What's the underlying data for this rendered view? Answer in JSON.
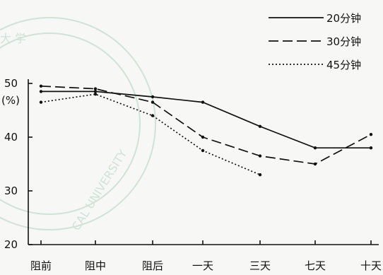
{
  "chart_data": {
    "type": "line",
    "title": "",
    "xlabel": "",
    "ylabel": "(%)",
    "categories": [
      "阻前",
      "阻中",
      "阻后",
      "一天",
      "三天",
      "七天",
      "十天"
    ],
    "yticks": [
      20,
      30,
      40,
      50
    ],
    "ylim": [
      20,
      50
    ],
    "grid": false,
    "legend_position": "top-right",
    "series": [
      {
        "name": "20分钟",
        "dash": "solid",
        "values": [
          48.5,
          48.5,
          47.5,
          46.5,
          42.0,
          38.0,
          38.0
        ]
      },
      {
        "name": "30分钟",
        "dash": "dashed",
        "values": [
          49.5,
          49.0,
          46.5,
          40.0,
          36.5,
          35.0,
          40.5
        ]
      },
      {
        "name": "45分钟",
        "dash": "dotted",
        "values": [
          46.5,
          48.0,
          44.0,
          37.5,
          33.0,
          null,
          null
        ]
      }
    ]
  },
  "watermark": {
    "text_cn": "大 学",
    "text_en": "CAL UNIVERSITY"
  }
}
